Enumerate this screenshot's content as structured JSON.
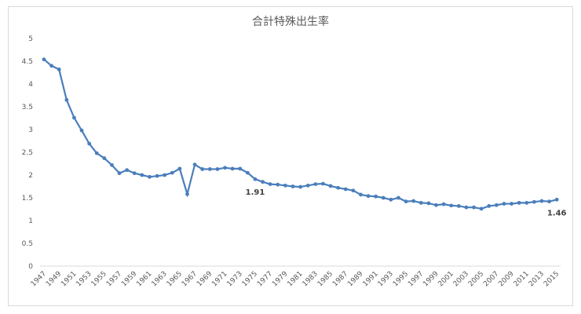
{
  "chart_data": {
    "type": "line",
    "title": "合計特殊出生率",
    "categories": [
      "1947",
      null,
      "1949",
      null,
      "1951",
      null,
      "1953",
      null,
      "1955",
      null,
      "1957",
      null,
      "1959",
      null,
      "1961",
      null,
      "1963",
      null,
      "1965",
      null,
      "1967",
      null,
      "1969",
      null,
      "1971",
      null,
      "1973",
      null,
      "1975",
      null,
      "1977",
      null,
      "1979",
      null,
      "1981",
      null,
      "1983",
      null,
      "1985",
      null,
      "1987",
      null,
      "1989",
      null,
      "1991",
      null,
      "1993",
      null,
      "1995",
      null,
      "1997",
      null,
      "1999",
      null,
      "2001",
      null,
      "2003",
      null,
      "2005",
      null,
      "2007",
      null,
      "2009",
      null,
      "2011",
      null,
      "2013",
      null,
      "2015"
    ],
    "series": [
      {
        "color": "#4a7ebb",
        "values": [
          4.54,
          4.4,
          4.32,
          3.65,
          3.26,
          2.98,
          2.69,
          2.48,
          2.37,
          2.22,
          2.04,
          2.11,
          2.04,
          2.0,
          1.96,
          1.98,
          2.0,
          2.05,
          2.14,
          1.58,
          2.23,
          2.13,
          2.13,
          2.13,
          2.16,
          2.14,
          2.14,
          2.05,
          1.91,
          1.85,
          1.8,
          1.79,
          1.77,
          1.75,
          1.74,
          1.77,
          1.8,
          1.81,
          1.76,
          1.72,
          1.69,
          1.66,
          1.57,
          1.54,
          1.53,
          1.5,
          1.46,
          1.5,
          1.42,
          1.43,
          1.39,
          1.38,
          1.34,
          1.36,
          1.33,
          1.32,
          1.29,
          1.29,
          1.26,
          1.32,
          1.34,
          1.37,
          1.37,
          1.39,
          1.39,
          1.41,
          1.43,
          1.42,
          1.46
        ],
        "value_labels": [
          null,
          null,
          null,
          null,
          null,
          null,
          null,
          null,
          null,
          null,
          null,
          null,
          null,
          null,
          null,
          null,
          null,
          null,
          null,
          null,
          null,
          null,
          null,
          null,
          null,
          null,
          null,
          null,
          "1.91",
          null,
          null,
          null,
          null,
          null,
          null,
          null,
          null,
          null,
          null,
          null,
          null,
          null,
          null,
          null,
          null,
          null,
          null,
          null,
          null,
          null,
          null,
          null,
          null,
          null,
          null,
          null,
          null,
          null,
          null,
          null,
          null,
          null,
          null,
          null,
          null,
          null,
          null,
          null,
          "1.46"
        ]
      }
    ],
    "ylim": [
      0,
      5
    ],
    "yticks": [
      0,
      0.5,
      1,
      1.5,
      2,
      2.5,
      3,
      3.5,
      4,
      4.5,
      5
    ],
    "grid": false
  }
}
